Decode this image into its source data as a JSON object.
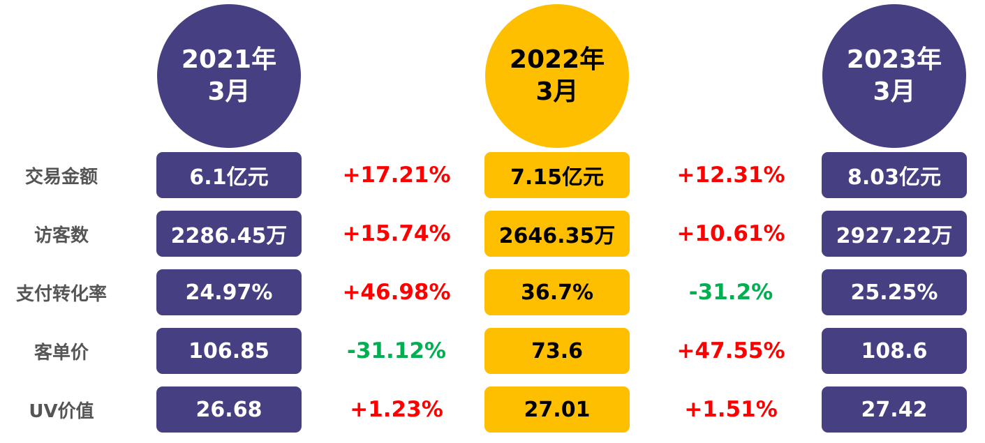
{
  "periods": [
    {
      "year": "2021年",
      "month": "3月",
      "style": "purple"
    },
    {
      "year": "2022年",
      "month": "3月",
      "style": "yellow"
    },
    {
      "year": "2023年",
      "month": "3月",
      "style": "purple"
    }
  ],
  "rows": [
    {
      "label": "交易金额",
      "values": [
        "6.1亿元",
        "7.15亿元",
        "8.03亿元"
      ],
      "changes": [
        "+17.21%",
        "+12.31%"
      ]
    },
    {
      "label": "访客数",
      "values": [
        "2286.45万",
        "2646.35万",
        "2927.22万"
      ],
      "changes": [
        "+15.74%",
        "+10.61%"
      ]
    },
    {
      "label": "支付转化率",
      "values": [
        "24.97%",
        "36.7%",
        "25.25%"
      ],
      "changes": [
        "+46.98%",
        "-31.2%"
      ]
    },
    {
      "label": "客单价",
      "values": [
        "106.85",
        "73.6",
        "108.6"
      ],
      "changes": [
        "-31.12%",
        "+47.55%"
      ]
    },
    {
      "label": "UV价值",
      "values": [
        "26.68",
        "27.01",
        "27.42"
      ],
      "changes": [
        "+1.23%",
        "+1.51%"
      ]
    }
  ]
}
